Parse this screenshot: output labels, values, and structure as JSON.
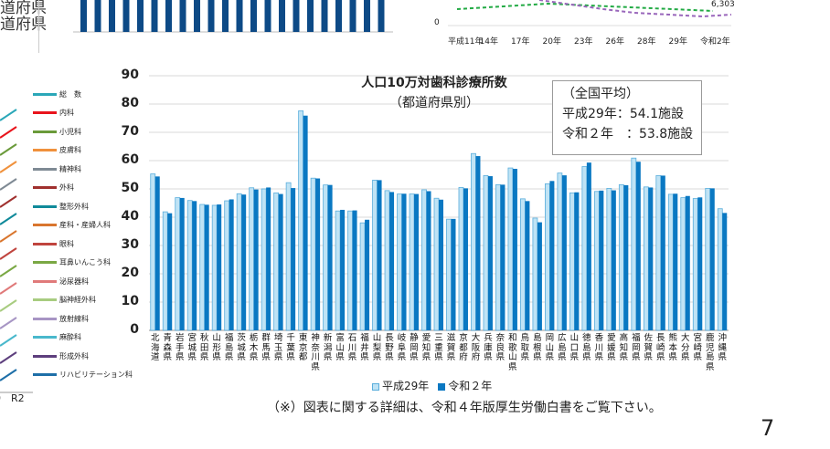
{
  "top_left": {
    "lines": [
      "道府県",
      "道府県"
    ]
  },
  "top_right_chart": {
    "x_labels": [
      "平成11年",
      "14年",
      "17年",
      "20年",
      "23年",
      "26年",
      "28年",
      "29年",
      "令和2年"
    ],
    "y_tick_zero": "0",
    "end_label": "6,303"
  },
  "left_chart": {
    "x_labels": [
      "0",
      "R2"
    ],
    "legend": [
      {
        "label": "総　数",
        "color": "#2aa7b8"
      },
      {
        "label": "内科",
        "color": "#e8141c"
      },
      {
        "label": "小児科",
        "color": "#6a9a3a"
      },
      {
        "label": "皮膚科",
        "color": "#f0913c"
      },
      {
        "label": "精神科",
        "color": "#7f8a94"
      },
      {
        "label": "外科",
        "color": "#a0302e"
      },
      {
        "label": "整形外科",
        "color": "#108a9a"
      },
      {
        "label": "産科・産婦人科",
        "color": "#d9762e"
      },
      {
        "label": "眼科",
        "color": "#c0443e"
      },
      {
        "label": "耳鼻いんこう科",
        "color": "#7aa844"
      },
      {
        "label": "泌尿器科",
        "color": "#e07a7a"
      },
      {
        "label": "脳神経外科",
        "color": "#a8cc80"
      },
      {
        "label": "放射線科",
        "color": "#a795c4"
      },
      {
        "label": "麻酔科",
        "color": "#49b8cc"
      },
      {
        "label": "形成外科",
        "color": "#5d3f7d"
      },
      {
        "label": "リハビリテーション科",
        "color": "#1e6fa8"
      }
    ]
  },
  "chart_data": {
    "type": "bar",
    "title": "人口10万対歯科診療所数",
    "subtitle": "（都道府県別）",
    "ylim": [
      0,
      90
    ],
    "y_ticks": [
      "0",
      "10",
      "20",
      "30",
      "40",
      "50",
      "60",
      "70",
      "80",
      "90"
    ],
    "grid": true,
    "legend_position": "bottom",
    "categories": [
      "北海道",
      "青森県",
      "岩手県",
      "宮城県",
      "秋田県",
      "山形県",
      "福島県",
      "茨城県",
      "栃木県",
      "群馬県",
      "埼玉県",
      "千葉県",
      "東京都",
      "神奈川県",
      "新潟県",
      "富山県",
      "石川県",
      "福井県",
      "山梨県",
      "長野県",
      "岐阜県",
      "静岡県",
      "愛知県",
      "三重県",
      "滋賀県",
      "京都府",
      "大阪府",
      "兵庫県",
      "奈良県",
      "和歌山県",
      "鳥取県",
      "島根県",
      "岡山県",
      "広島県",
      "山口県",
      "徳島県",
      "香川県",
      "愛媛県",
      "高知県",
      "福岡県",
      "佐賀県",
      "長崎県",
      "熊本県",
      "大分県",
      "宮崎県",
      "鹿児島県",
      "沖縄県"
    ],
    "series": [
      {
        "name": "平成29年",
        "color": "#bfe3f5",
        "values": [
          55.3,
          41.9,
          46.9,
          45.9,
          44.5,
          44.2,
          45.8,
          48.3,
          50.4,
          50.0,
          48.6,
          52.2,
          77.6,
          53.8,
          51.4,
          42.2,
          42.2,
          38.0,
          53.1,
          49.4,
          48.2,
          48.2,
          49.7,
          46.7,
          39.3,
          50.5,
          62.5,
          54.7,
          51.5,
          57.4,
          46.5,
          39.7,
          51.8,
          55.6,
          48.6,
          57.9,
          49.1,
          50.2,
          51.5,
          60.9,
          50.7,
          54.7,
          48.1,
          46.9,
          46.6,
          50.2,
          43.0
        ]
      },
      {
        "name": "令和２年",
        "color": "#0a78c2",
        "values": [
          54.4,
          41.4,
          46.8,
          45.7,
          44.4,
          44.5,
          46.3,
          48.0,
          49.8,
          50.5,
          48.2,
          50.3,
          75.9,
          53.7,
          51.4,
          42.6,
          42.4,
          39.1,
          53.1,
          48.9,
          48.3,
          48.2,
          49.2,
          46.2,
          39.4,
          50.2,
          61.6,
          54.5,
          51.5,
          57.1,
          45.7,
          38.2,
          52.8,
          54.8,
          48.8,
          59.3,
          49.4,
          49.5,
          51.3,
          59.6,
          50.5,
          54.7,
          48.3,
          47.5,
          47.0,
          50.2,
          41.5
        ]
      }
    ],
    "annotation": {
      "lines": [
        "（全国平均）",
        "平成29年：54.1施設",
        "令和２年　：53.8施設"
      ]
    }
  },
  "legend_labels": [
    "平成29年",
    "令和２年"
  ],
  "footnote": "（※）図表に関する詳細は、令和４年版厚生労働白書をご覧下さい。",
  "page_number": "7"
}
